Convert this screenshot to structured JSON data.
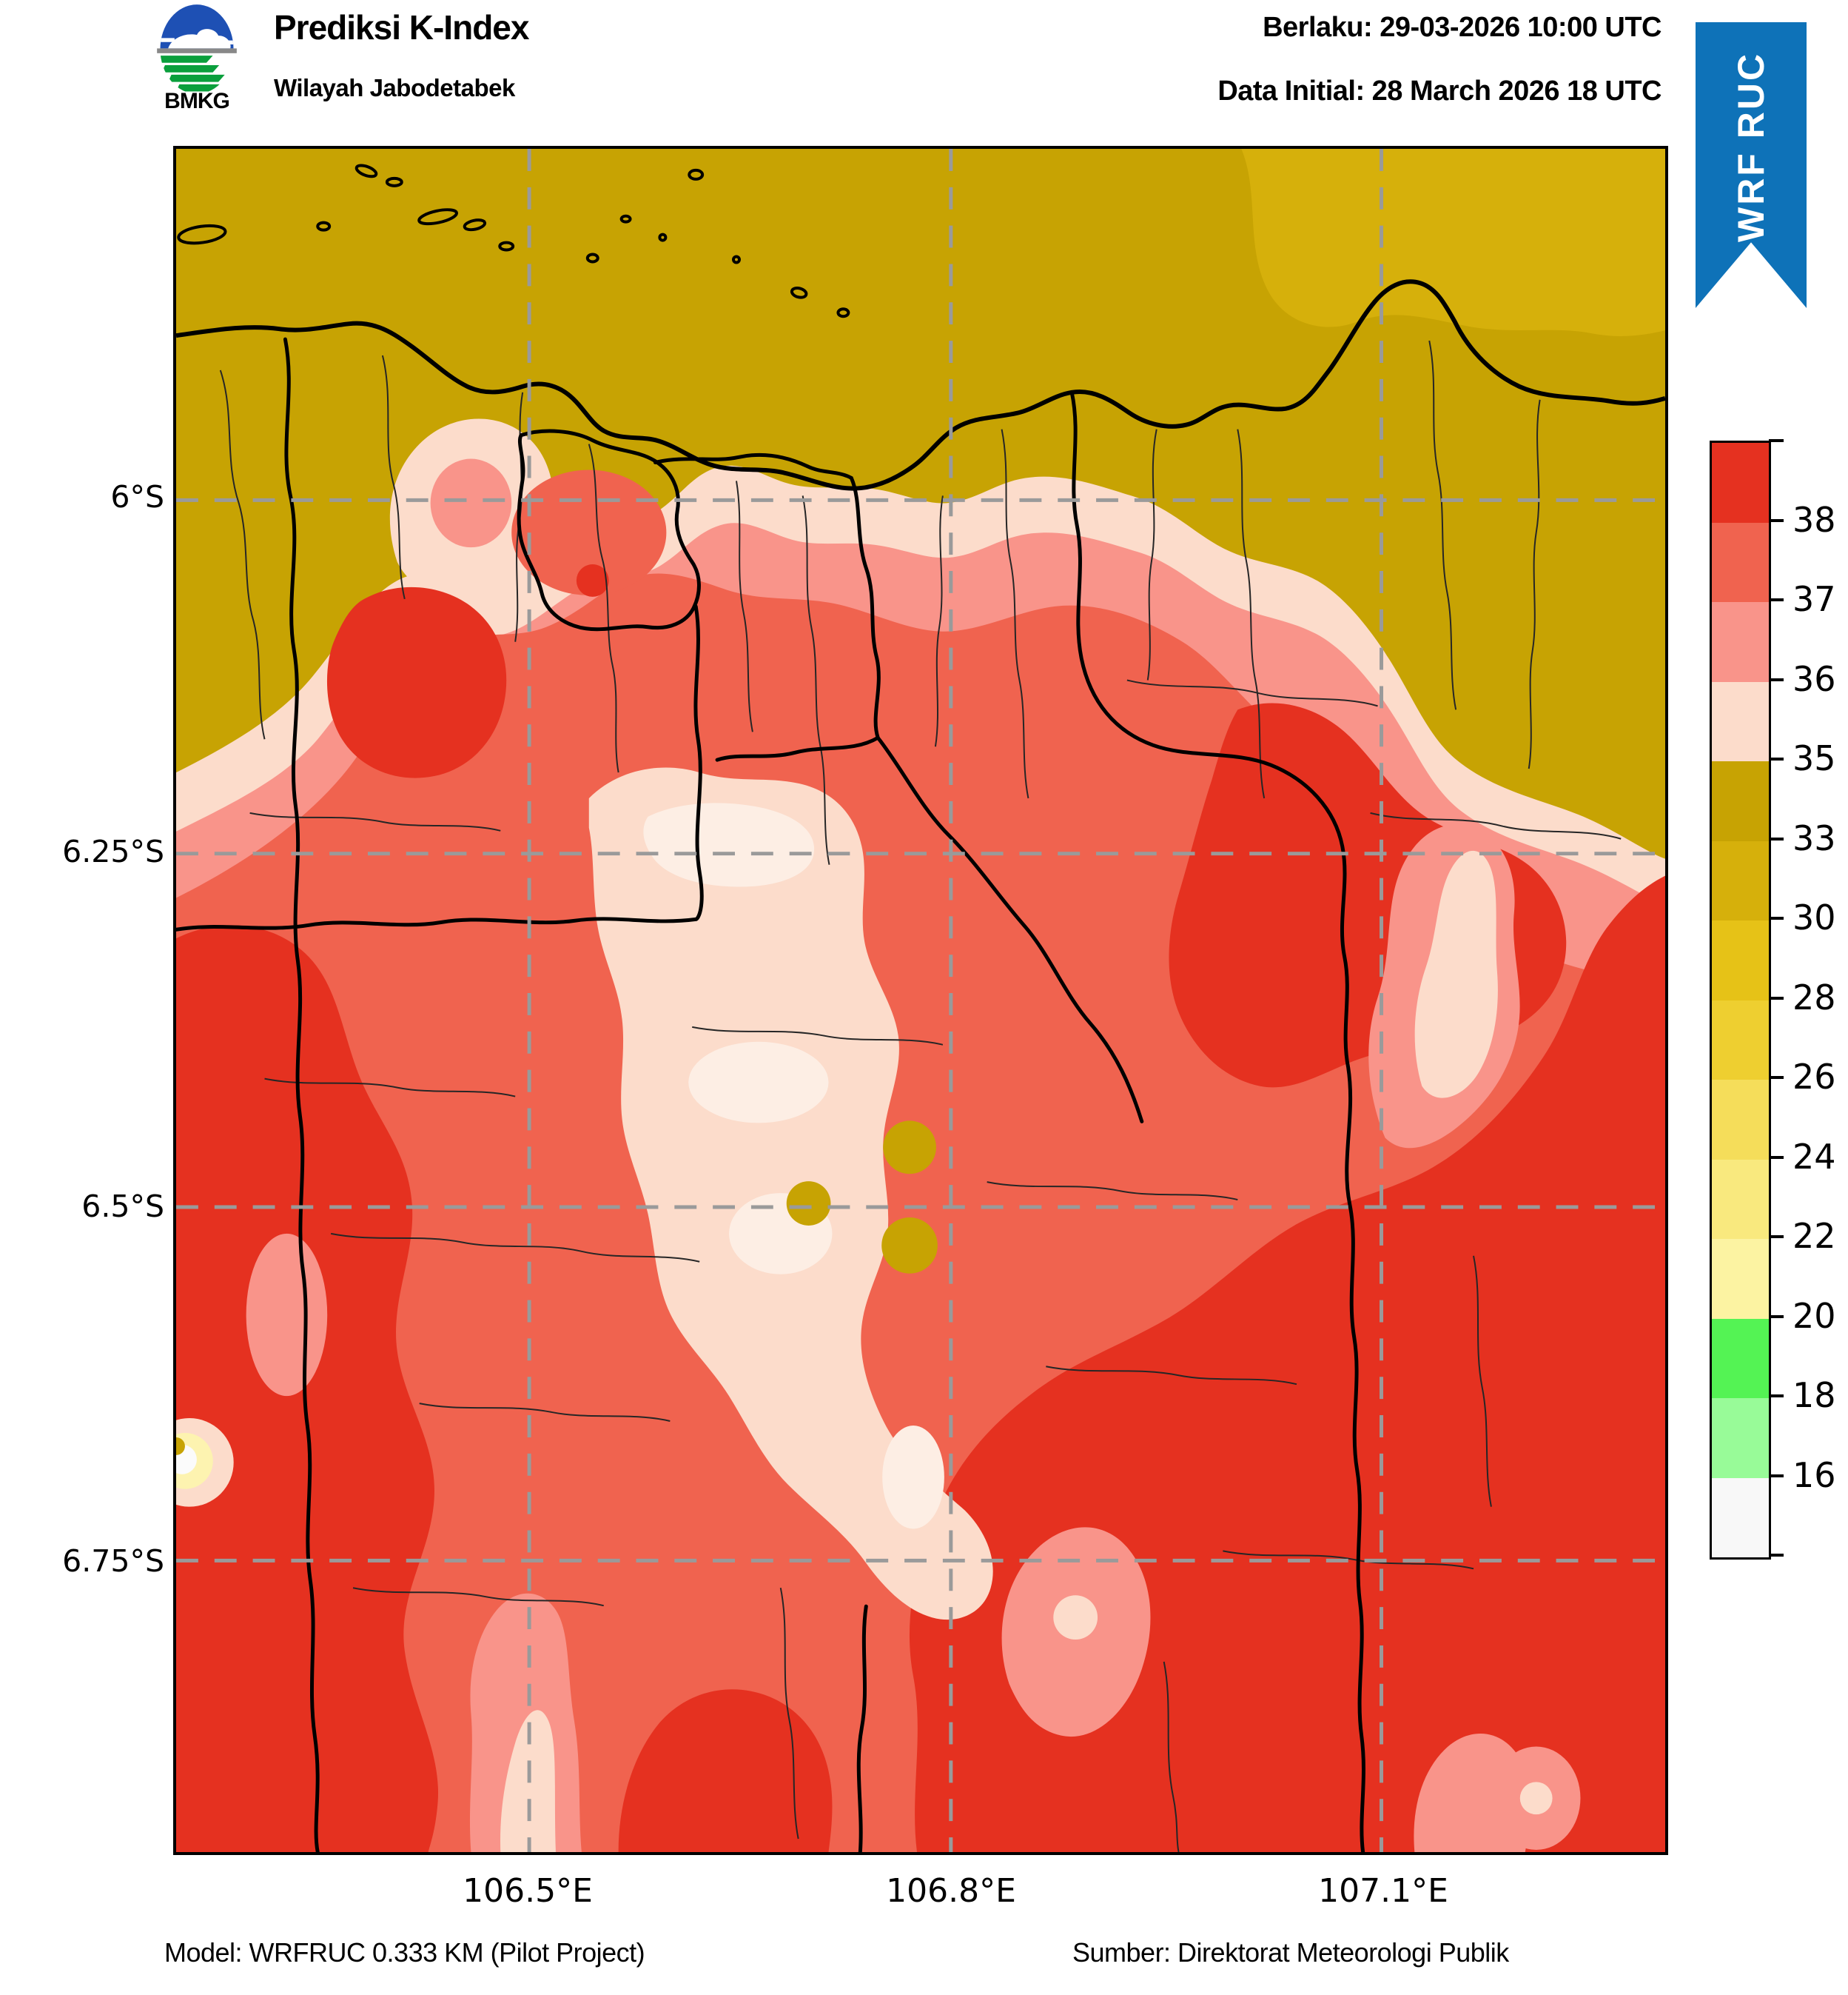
{
  "header": {
    "title": "Prediksi K-Index",
    "subtitle": "Wilayah Jabodetabek",
    "logo_caption": "BMKG",
    "valid": "Berlaku: 29-03-2026 10:00 UTC",
    "initial": "Data Initial: 28 March 2026 18 UTC"
  },
  "ribbon": {
    "label": "WRF RUC",
    "color": "#0e72b8"
  },
  "axes": {
    "x_labels": [
      "106.5°E",
      "106.8°E",
      "107.1°E"
    ],
    "y_labels": [
      "6°S",
      "6.25°S",
      "6.5°S",
      "6.75°S"
    ]
  },
  "colorbar": {
    "tick_labels": [
      "38",
      "37",
      "36",
      "35",
      "33",
      "30",
      "28",
      "26",
      "24",
      "22",
      "20",
      "18",
      "16"
    ],
    "segment_colors_top_to_bottom": [
      "#e53120",
      "#f0634f",
      "#f9948a",
      "#fcdccb",
      "#c7a303",
      "#d6b00b",
      "#e6c217",
      "#eecf30",
      "#f5dd5a",
      "#f9e97e",
      "#fcf3a2",
      "#54f354",
      "#98fb98",
      "#f8f8f8"
    ]
  },
  "footer": {
    "model": "Model: WRFRUC 0.333 KM (Pilot Project)",
    "source": "Sumber: Direktorat Meteorologi Publik"
  },
  "chart_data": {
    "type": "heatmap",
    "title": "Prediksi K-Index",
    "region": "Wilayah Jabodetabek",
    "valid_time": "29-03-2026 10:00 UTC",
    "initial_time": "28 March 2026 18 UTC",
    "model": "WRFRUC 0.333 KM (Pilot Project)",
    "colorbar_boundaries": [
      16,
      18,
      20,
      22,
      24,
      26,
      28,
      30,
      33,
      35,
      36,
      37,
      38
    ],
    "colorbar_tick_labels_top_to_bottom": [
      "38",
      "37",
      "36",
      "35",
      "33",
      "30",
      "28",
      "26",
      "24",
      "22",
      "20",
      "18",
      "16"
    ],
    "x_axis_ticks": [
      "106.5°E",
      "106.8°E",
      "107.1°E"
    ],
    "y_axis_ticks": [
      "6°S",
      "6.25°S",
      "6.5°S",
      "6.75°S"
    ],
    "legend_position": "right",
    "grid": true
  }
}
